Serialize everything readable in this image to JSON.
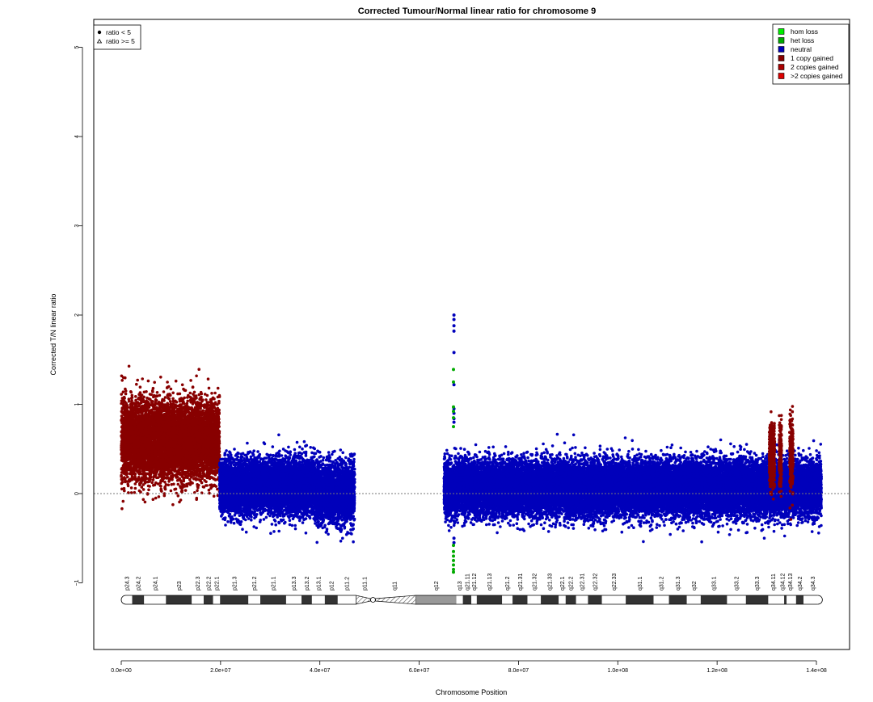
{
  "chart_data": {
    "type": "scatter",
    "title": "Corrected Tumour/Normal linear ratio for chromosome  9",
    "xlabel": "Chromosome Position",
    "ylabel": "Corrected T/N linear ratio",
    "xlim": [
      0,
      141000000
    ],
    "ylim": [
      -1.7,
      5.5
    ],
    "x_ticks": [
      0,
      20000000,
      40000000,
      60000000,
      80000000,
      100000000,
      120000000,
      140000000
    ],
    "x_tick_labels": [
      "0.0e+00",
      "2.0e+07",
      "4.0e+07",
      "6.0e+07",
      "8.0e+07",
      "1.0e+08",
      "1.2e+08",
      "1.4e+08"
    ],
    "y_ticks": [
      -1,
      0,
      1,
      2,
      3,
      4,
      5
    ],
    "y_tick_labels": [
      "−1",
      "0",
      "1",
      "2",
      "3",
      "4",
      "5"
    ],
    "reference_line_y": 0,
    "grid": false,
    "colors": {
      "hom_loss": "#00ee00",
      "het_loss": "#00aa00",
      "neutral": "#0000bb",
      "one_copy_gained": "#880000",
      "two_copies_gained": "#aa0000",
      "gt_two_copies_gained": "#dd0000"
    },
    "shape_legend": {
      "position": "top-left",
      "entries": [
        {
          "label": "ratio < 5",
          "shape": "filled-circle"
        },
        {
          "label": "ratio >= 5",
          "shape": "open-triangle"
        }
      ]
    },
    "legend": {
      "position": "top-right",
      "entries": [
        {
          "label": "hom loss",
          "color": "#00ee00"
        },
        {
          "label": "het loss",
          "color": "#00aa00"
        },
        {
          "label": "neutral",
          "color": "#0000bb"
        },
        {
          "label": "1 copy gained",
          "color": "#880000"
        },
        {
          "label": "2 copies gained",
          "color": "#aa0000"
        },
        {
          "label": ">2 copies gained",
          "color": "#dd0000"
        }
      ]
    },
    "segments": [
      {
        "name": "1 copy gained",
        "color": "#880000",
        "x_start": 0,
        "x_end": 19800000,
        "mean": 0.6,
        "spread": 0.22,
        "min": -0.28,
        "max": 1.7
      },
      {
        "name": "neutral",
        "color": "#0000bb",
        "x_start": 19800000,
        "x_end": 39000000,
        "mean": 0.08,
        "spread": 0.15,
        "min": -0.45,
        "max": 0.82
      },
      {
        "name": "neutral",
        "color": "#0000bb",
        "x_start": 39000000,
        "x_end": 47000000,
        "mean": 0.0,
        "spread": 0.16,
        "min": -0.55,
        "max": 0.58
      },
      {
        "name": "neutral",
        "color": "#0000bb",
        "x_start": 65000000,
        "x_end": 141000000,
        "mean": 0.06,
        "spread": 0.15,
        "min": -0.65,
        "max": 1.02
      },
      {
        "name": "1 copy gained",
        "color": "#880000",
        "x_start": 130500000,
        "x_end": 131600000,
        "mean": 0.4,
        "spread": 0.18,
        "min": -0.3,
        "max": 1.23
      },
      {
        "name": "1 copy gained",
        "color": "#880000",
        "x_start": 132500000,
        "x_end": 133000000,
        "mean": 0.4,
        "spread": 0.18,
        "min": -0.3,
        "max": 0.9
      },
      {
        "name": "1 copy gained",
        "color": "#880000",
        "x_start": 134600000,
        "x_end": 135300000,
        "mean": 0.45,
        "spread": 0.2,
        "min": -0.4,
        "max": 1.0
      }
    ],
    "highlighted_points": [
      {
        "category": "neutral",
        "x": 67000000,
        "y": [
          2.0,
          1.95,
          1.88,
          1.82,
          1.58,
          1.22,
          0.95,
          0.9,
          0.84,
          0.8,
          -0.5,
          -0.55
        ]
      },
      {
        "category": "het loss",
        "x": 66900000,
        "y": [
          1.39,
          1.25,
          0.97,
          0.92,
          0.85,
          0.75,
          -0.58,
          -0.65,
          -0.7,
          -0.75,
          -0.8,
          -0.85,
          -0.88
        ]
      }
    ],
    "ideogram": {
      "bands": [
        {
          "name": "p24.3",
          "start": 0,
          "end": 2200000,
          "stain": "gneg"
        },
        {
          "name": "p24.2",
          "start": 2200000,
          "end": 4600000,
          "stain": "gpos100"
        },
        {
          "name": "p24.1",
          "start": 4600000,
          "end": 9000000,
          "stain": "gneg"
        },
        {
          "name": "p23",
          "start": 9000000,
          "end": 14200000,
          "stain": "gpos100"
        },
        {
          "name": "p22.3",
          "start": 14200000,
          "end": 16600000,
          "stain": "gneg"
        },
        {
          "name": "p22.2",
          "start": 16600000,
          "end": 18500000,
          "stain": "gpos100"
        },
        {
          "name": "p22.1",
          "start": 18500000,
          "end": 19900000,
          "stain": "gneg"
        },
        {
          "name": "p21.3",
          "start": 19900000,
          "end": 25600000,
          "stain": "gpos100"
        },
        {
          "name": "p21.2",
          "start": 25600000,
          "end": 28000000,
          "stain": "gneg"
        },
        {
          "name": "p21.1",
          "start": 28000000,
          "end": 33200000,
          "stain": "gpos100"
        },
        {
          "name": "p13.3",
          "start": 33200000,
          "end": 36300000,
          "stain": "gneg"
        },
        {
          "name": "p13.2",
          "start": 36300000,
          "end": 38400000,
          "stain": "gpos100"
        },
        {
          "name": "p13.1",
          "start": 38400000,
          "end": 41000000,
          "stain": "gneg"
        },
        {
          "name": "p12",
          "start": 41000000,
          "end": 43600000,
          "stain": "gpos100"
        },
        {
          "name": "p11.2",
          "start": 43600000,
          "end": 47300000,
          "stain": "gneg"
        },
        {
          "name": "p11.1",
          "start": 47300000,
          "end": 50700000,
          "stain": "acen"
        },
        {
          "name": "q11",
          "start": 50700000,
          "end": 59300000,
          "stain": "acen"
        },
        {
          "name": "q12",
          "start": 59300000,
          "end": 67500000,
          "stain": "gvar"
        },
        {
          "name": "q13",
          "start": 67500000,
          "end": 68800000,
          "stain": "gneg"
        },
        {
          "name": "q21.11",
          "start": 68800000,
          "end": 70500000,
          "stain": "gpos100"
        },
        {
          "name": "q21.12",
          "start": 70500000,
          "end": 71600000,
          "stain": "gneg"
        },
        {
          "name": "q21.13",
          "start": 71600000,
          "end": 76700000,
          "stain": "gpos100"
        },
        {
          "name": "q21.2",
          "start": 76700000,
          "end": 78800000,
          "stain": "gneg"
        },
        {
          "name": "q21.31",
          "start": 78800000,
          "end": 81800000,
          "stain": "gpos100"
        },
        {
          "name": "q21.32",
          "start": 81800000,
          "end": 84500000,
          "stain": "gneg"
        },
        {
          "name": "q21.33",
          "start": 84500000,
          "end": 88100000,
          "stain": "gpos100"
        },
        {
          "name": "q22.1",
          "start": 88100000,
          "end": 89500000,
          "stain": "gneg"
        },
        {
          "name": "q22.2",
          "start": 89500000,
          "end": 91600000,
          "stain": "gpos100"
        },
        {
          "name": "q22.31",
          "start": 91600000,
          "end": 94000000,
          "stain": "gneg"
        },
        {
          "name": "q22.32",
          "start": 94000000,
          "end": 96800000,
          "stain": "gpos100"
        },
        {
          "name": "q22.33",
          "start": 96800000,
          "end": 101600000,
          "stain": "gneg"
        },
        {
          "name": "q31.1",
          "start": 101600000,
          "end": 107200000,
          "stain": "gpos100"
        },
        {
          "name": "q31.2",
          "start": 107200000,
          "end": 110300000,
          "stain": "gneg"
        },
        {
          "name": "q31.3",
          "start": 110300000,
          "end": 113900000,
          "stain": "gpos100"
        },
        {
          "name": "q32",
          "start": 113900000,
          "end": 116700000,
          "stain": "gneg"
        },
        {
          "name": "q33.1",
          "start": 116700000,
          "end": 122000000,
          "stain": "gpos100"
        },
        {
          "name": "q33.2",
          "start": 122000000,
          "end": 125800000,
          "stain": "gneg"
        },
        {
          "name": "q33.3",
          "start": 125800000,
          "end": 130300000,
          "stain": "gpos100"
        },
        {
          "name": "q34.11",
          "start": 130300000,
          "end": 133500000,
          "stain": "gneg"
        },
        {
          "name": "q34.12",
          "start": 133500000,
          "end": 134000000,
          "stain": "gpos100"
        },
        {
          "name": "q34.13",
          "start": 134000000,
          "end": 135900000,
          "stain": "gneg"
        },
        {
          "name": "q34.2",
          "start": 135900000,
          "end": 137400000,
          "stain": "gpos100"
        },
        {
          "name": "q34.3",
          "start": 137400000,
          "end": 141200000,
          "stain": "gneg"
        }
      ],
      "label_positions": [
        {
          "name": "p24.3",
          "x": 1100000
        },
        {
          "name": "p24.2",
          "x": 3400000
        },
        {
          "name": "p24.1",
          "x": 6800000
        },
        {
          "name": "p23",
          "x": 11600000
        },
        {
          "name": "p22.3",
          "x": 15400000
        },
        {
          "name": "p22.2",
          "x": 17550000
        },
        {
          "name": "p22.1",
          "x": 19200000
        },
        {
          "name": "p21.3",
          "x": 22750000
        },
        {
          "name": "p21.2",
          "x": 26800000
        },
        {
          "name": "p21.1",
          "x": 30600000
        },
        {
          "name": "p13.3",
          "x": 34750000
        },
        {
          "name": "p13.2",
          "x": 37350000
        },
        {
          "name": "p13.1",
          "x": 39700000
        },
        {
          "name": "p12",
          "x": 42300000
        },
        {
          "name": "p11.2",
          "x": 45450000
        },
        {
          "name": "p11.1",
          "x": 49000000
        },
        {
          "name": "q11",
          "x": 55000000
        },
        {
          "name": "q12",
          "x": 63400000
        },
        {
          "name": "q13",
          "x": 68150000
        },
        {
          "name": "q21.11",
          "x": 69650000
        },
        {
          "name": "q21.12",
          "x": 71050000
        },
        {
          "name": "q21.13",
          "x": 74150000
        },
        {
          "name": "q21.2",
          "x": 77750000
        },
        {
          "name": "q21.31",
          "x": 80300000
        },
        {
          "name": "q21.32",
          "x": 83150000
        },
        {
          "name": "q21.33",
          "x": 86300000
        },
        {
          "name": "q22.1",
          "x": 88800000
        },
        {
          "name": "q22.2",
          "x": 90550000
        },
        {
          "name": "q22.31",
          "x": 92800000
        },
        {
          "name": "q22.32",
          "x": 95400000
        },
        {
          "name": "q22.33",
          "x": 99200000
        },
        {
          "name": "q31.1",
          "x": 104400000
        },
        {
          "name": "q31.2",
          "x": 108750000
        },
        {
          "name": "q31.3",
          "x": 112100000
        },
        {
          "name": "q32",
          "x": 115300000
        },
        {
          "name": "q33.1",
          "x": 119350000
        },
        {
          "name": "q33.2",
          "x": 123900000
        },
        {
          "name": "q33.3",
          "x": 128050000
        },
        {
          "name": "q34.11",
          "x": 131300000
        },
        {
          "name": "q34.12",
          "x": 133200000
        },
        {
          "name": "q34.13",
          "x": 134700000
        },
        {
          "name": "q34.2",
          "x": 136650000
        },
        {
          "name": "q34.3",
          "x": 139300000
        }
      ]
    }
  }
}
